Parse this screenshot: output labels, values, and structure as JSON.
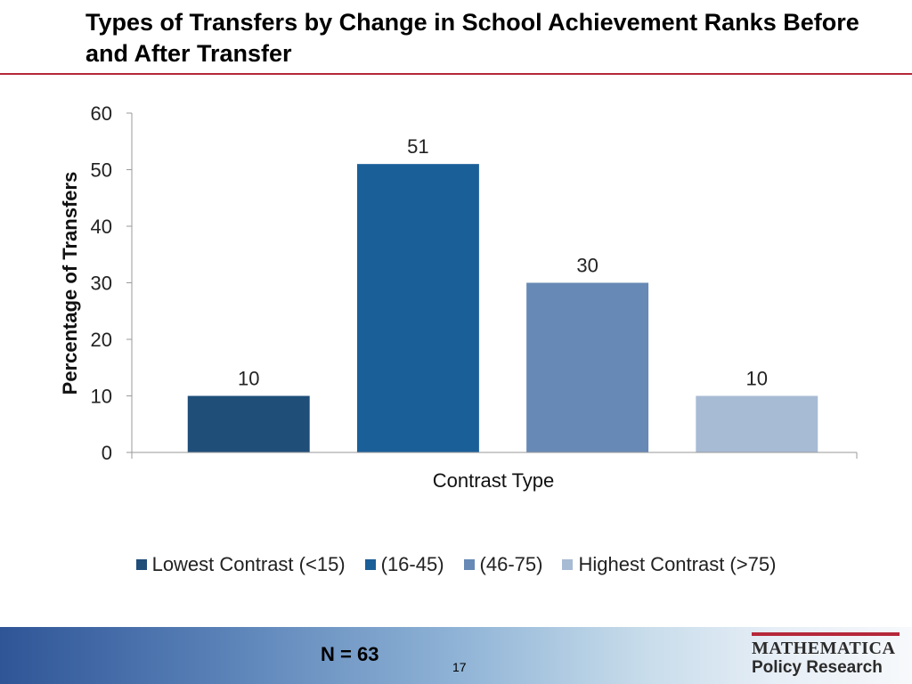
{
  "slide": {
    "title": "Types of Transfers by Change in School Achievement Ranks Before and After Transfer",
    "title_color": "#000000",
    "accent_color": "#b5283a",
    "n_label": "N = 63",
    "page_number": "17"
  },
  "logo": {
    "line1": "MATHEMATICA",
    "line2": "Policy Research"
  },
  "chart_data": {
    "type": "bar",
    "categories": [
      "Lowest Contrast (<15)",
      "(16-45)",
      "(46-75)",
      "Highest Contrast (>75)"
    ],
    "values": [
      10,
      51,
      30,
      10
    ],
    "data_labels": [
      "10",
      "51",
      "30",
      "10"
    ],
    "colors": [
      "#1f4e79",
      "#1b5f99",
      "#6789b5",
      "#a8bbd4"
    ],
    "xlabel": "Contrast Type",
    "ylabel": "Percentage of Transfers",
    "ylim": [
      0,
      60
    ],
    "yticks": [
      0,
      10,
      20,
      30,
      40,
      50,
      60
    ],
    "grid": false,
    "legend_position": "bottom"
  }
}
